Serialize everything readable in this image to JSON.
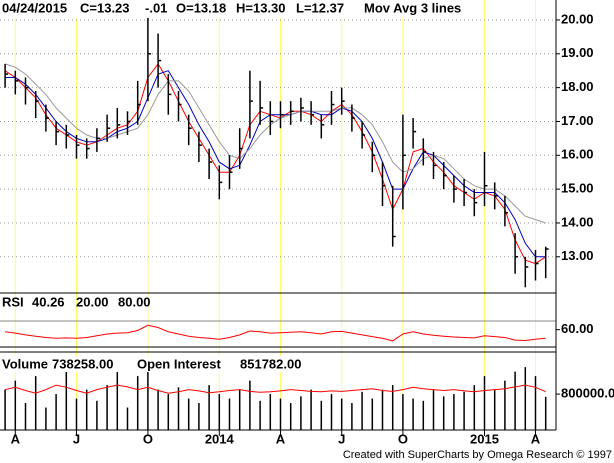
{
  "chart_data": [
    {
      "type": "ohlc",
      "legend": [
        "04/24/2015",
        "C=13.23",
        "-.01",
        "O=13.18",
        "H=13.30",
        "L=12.37",
        "Mov Avg 3 lines"
      ],
      "categories": [
        null,
        "A",
        null,
        null,
        null,
        null,
        null,
        "J",
        null,
        null,
        null,
        null,
        null,
        null,
        "O",
        null,
        null,
        null,
        null,
        null,
        null,
        "2014",
        null,
        null,
        null,
        null,
        null,
        "A",
        null,
        null,
        null,
        null,
        null,
        "J",
        null,
        null,
        null,
        null,
        null,
        "O",
        null,
        null,
        null,
        null,
        null,
        null,
        null,
        "2015",
        null,
        null,
        null,
        null,
        "A",
        null
      ],
      "high": [
        18.7,
        18.5,
        18.3,
        17.9,
        17.5,
        17.0,
        16.9,
        16.6,
        16.5,
        16.8,
        17.2,
        17.4,
        17.3,
        18.2,
        20.1,
        19.6,
        18.4,
        17.9,
        17.2,
        16.7,
        16.2,
        15.7,
        16.0,
        16.8,
        18.5,
        18.2,
        17.6,
        17.6,
        17.6,
        17.7,
        17.6,
        17.2,
        17.9,
        18.0,
        17.5,
        17.0,
        16.4,
        15.8,
        15.1,
        17.2,
        17.1,
        16.5,
        16.1,
        15.8,
        15.4,
        15.3,
        15.0,
        16.1,
        15.2,
        14.8,
        13.7,
        13.0,
        13.2,
        13.3
      ],
      "low": [
        18.0,
        17.8,
        17.5,
        17.1,
        16.7,
        16.3,
        16.2,
        15.9,
        15.9,
        16.1,
        16.4,
        16.5,
        16.6,
        16.9,
        17.6,
        18.0,
        17.2,
        17.0,
        16.3,
        15.8,
        15.3,
        14.7,
        15.0,
        15.6,
        16.5,
        16.9,
        16.6,
        16.8,
        16.9,
        17.0,
        16.9,
        16.5,
        16.9,
        17.2,
        16.7,
        16.2,
        15.5,
        14.5,
        13.3,
        14.4,
        16.2,
        15.7,
        15.3,
        15.0,
        14.6,
        14.5,
        14.2,
        14.5,
        14.4,
        13.9,
        12.5,
        12.1,
        12.3,
        12.37
      ],
      "close": [
        18.4,
        18.2,
        18.0,
        17.6,
        17.1,
        16.7,
        16.6,
        16.3,
        16.2,
        16.5,
        16.8,
        16.9,
        17.0,
        17.5,
        19.0,
        18.8,
        17.8,
        17.5,
        16.8,
        16.3,
        15.8,
        15.2,
        15.5,
        16.2,
        17.6,
        17.4,
        17.0,
        17.2,
        17.3,
        17.4,
        17.2,
        16.9,
        17.5,
        17.6,
        17.1,
        16.6,
        16.0,
        15.1,
        13.6,
        16.0,
        16.7,
        16.1,
        15.7,
        15.4,
        15.0,
        14.9,
        14.6,
        15.1,
        14.8,
        14.3,
        13.0,
        12.7,
        12.8,
        13.23
      ],
      "color": "#000000",
      "series": [
        {
          "color": "#ff0000",
          "values": [
            18.5,
            18.3,
            18.0,
            17.7,
            17.2,
            16.8,
            16.6,
            16.4,
            16.3,
            16.4,
            16.6,
            16.8,
            16.9,
            17.3,
            18.3,
            18.7,
            18.2,
            17.6,
            17.0,
            16.5,
            16.0,
            15.5,
            15.5,
            16.0,
            16.9,
            17.3,
            17.2,
            17.1,
            17.3,
            17.3,
            17.2,
            17.0,
            17.3,
            17.5,
            17.2,
            16.7,
            16.1,
            15.3,
            14.4,
            15.0,
            16.1,
            16.2,
            15.8,
            15.5,
            15.1,
            14.9,
            14.7,
            14.9,
            14.8,
            14.4,
            13.5,
            12.9,
            12.8,
            13.0
          ]
        },
        {
          "color": "#0000c0",
          "values": [
            18.3,
            18.3,
            18.1,
            17.8,
            17.4,
            17.0,
            16.7,
            16.5,
            16.4,
            16.4,
            16.5,
            16.7,
            16.8,
            17.0,
            17.7,
            18.4,
            18.5,
            18.0,
            17.5,
            16.9,
            16.4,
            15.8,
            15.6,
            15.7,
            16.3,
            17.0,
            17.2,
            17.2,
            17.2,
            17.3,
            17.3,
            17.2,
            17.2,
            17.4,
            17.3,
            17.0,
            16.5,
            15.8,
            15.0,
            15.0,
            15.6,
            16.1,
            16.0,
            15.7,
            15.4,
            15.1,
            14.9,
            14.9,
            14.9,
            14.6,
            14.1,
            13.4,
            13.0,
            13.0
          ]
        },
        {
          "color": "#999999",
          "values": [
            18.7,
            18.6,
            18.4,
            18.1,
            17.8,
            17.4,
            17.1,
            16.8,
            16.6,
            16.5,
            16.5,
            16.6,
            16.7,
            16.8,
            17.2,
            17.8,
            18.2,
            18.2,
            17.9,
            17.4,
            16.9,
            16.4,
            16.0,
            15.9,
            16.2,
            16.6,
            16.9,
            17.1,
            17.2,
            17.3,
            17.3,
            17.3,
            17.3,
            17.4,
            17.4,
            17.2,
            16.9,
            16.4,
            15.8,
            15.5,
            15.6,
            15.9,
            16.0,
            15.9,
            15.6,
            15.3,
            15.1,
            15.0,
            15.0,
            14.8,
            14.5,
            14.2,
            14.1,
            14.0
          ]
        }
      ],
      "ylim": [
        11.93,
        20.59
      ],
      "yticks": [
        {
          "value": 13,
          "label": "13.00"
        },
        {
          "value": 14,
          "label": "14.00"
        },
        {
          "value": 15,
          "label": "15.00"
        },
        {
          "value": 16,
          "label": "16.00"
        },
        {
          "value": 17,
          "label": "17.00"
        },
        {
          "value": 18,
          "label": "18.00"
        },
        {
          "value": 19,
          "label": "19.00"
        },
        {
          "value": 20,
          "label": "20.00"
        }
      ],
      "grid": true
    },
    {
      "type": "line",
      "title": "RSI",
      "current": 40.26,
      "levels": [
        {
          "value": 20,
          "label": "20.00",
          "color": "#000000"
        },
        {
          "value": 80,
          "label": "80.00",
          "color": "#888888"
        }
      ],
      "color": "#ff0000",
      "values": [
        55,
        52,
        48,
        45,
        42,
        40,
        41,
        40,
        42,
        46,
        50,
        52,
        53,
        58,
        70,
        65,
        55,
        50,
        45,
        42,
        40,
        38,
        42,
        48,
        57,
        55,
        52,
        53,
        54,
        55,
        53,
        50,
        55,
        56,
        52,
        48,
        44,
        40,
        34,
        50,
        55,
        50,
        47,
        45,
        43,
        42,
        41,
        46,
        44,
        42,
        36,
        35,
        38,
        40.26
      ],
      "ylim": [
        8.5,
        137.7
      ],
      "yticks": [
        {
          "value": 60,
          "label": "60.00"
        }
      ]
    },
    {
      "type": "bar",
      "series": [
        {
          "name": "Volume",
          "current": {
            "value": 738258,
            "label": "738258.00"
          },
          "color": "#000000",
          "values": [
            900000,
            1100000,
            600000,
            1200000,
            500000,
            800000,
            1400000,
            700000,
            900000,
            650000,
            1000000,
            1300000,
            500000,
            1200000,
            1500000,
            900000,
            800000,
            950000,
            700000,
            600000,
            1000000,
            800000,
            700000,
            900000,
            1100000,
            650000,
            800000,
            700000,
            600000,
            750000,
            900000,
            650000,
            800000,
            700000,
            600000,
            850000,
            700000,
            900000,
            1000000,
            800000,
            700000,
            650000,
            900000,
            750000,
            800000,
            850000,
            1000000,
            1200000,
            900000,
            1100000,
            1300000,
            1400000,
            1200000,
            738258
          ]
        },
        {
          "name": "Open Interest",
          "type": "line",
          "current": {
            "value": 851782,
            "label": "851782.00"
          },
          "color": "#ff0000",
          "values": [
            900000,
            950000,
            880000,
            820000,
            900000,
            1000000,
            950000,
            880000,
            820000,
            900000,
            950000,
            1000000,
            960000,
            900000,
            950000,
            880000,
            820000,
            850000,
            900000,
            870000,
            830000,
            850000,
            880000,
            900000,
            860000,
            840000,
            850000,
            870000,
            900000,
            880000,
            860000,
            850000,
            870000,
            860000,
            880000,
            900000,
            920000,
            880000,
            860000,
            900000,
            950000,
            920000,
            900000,
            880000,
            900000,
            870000,
            850000,
            880000,
            900000,
            920000,
            960000,
            1000000,
            950000,
            851782
          ]
        }
      ],
      "ylim": [
        0,
        1670000
      ],
      "yticks": [
        {
          "value": 800000,
          "label": "800000.0"
        }
      ]
    }
  ],
  "footer": "Created with SuperCharts by Omega Research © 1997"
}
